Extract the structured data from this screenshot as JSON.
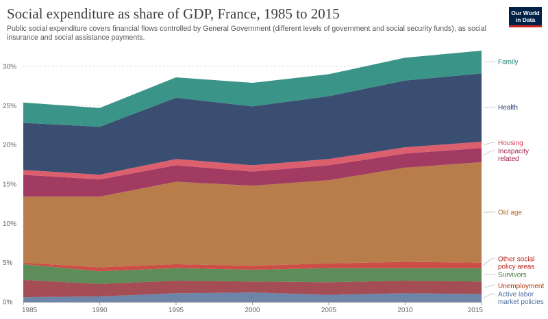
{
  "header": {
    "title": "Social expenditure as share of GDP, France, 1985 to 2015",
    "subtitle": "Public social expenditure covers financial flows controlled by General Government (different levels of government and social security funds), as social insurance and social assistance payments.",
    "logo_line1": "Our World",
    "logo_line2": "in Data"
  },
  "chart_data": {
    "type": "area",
    "stacked": true,
    "x": [
      1985,
      1990,
      1995,
      2000,
      2005,
      2010,
      2015
    ],
    "x_tick_labels": [
      "1985",
      "1990",
      "1995",
      "2000",
      "2005",
      "2010",
      "2015"
    ],
    "ylim": [
      0,
      32
    ],
    "y_ticks": [
      0,
      5,
      10,
      15,
      20,
      25,
      30
    ],
    "y_tick_labels": [
      "0%",
      "5%",
      "10%",
      "15%",
      "20%",
      "25%",
      "30%"
    ],
    "grid": "horizontal dashed",
    "legend": "right",
    "series": [
      {
        "name": "Active labor market policies",
        "label_lines": [
          "Active labor",
          "market policies"
        ],
        "color": "#6d85a8",
        "label_color": "#4c6a9c",
        "values": [
          0.6,
          0.7,
          1.1,
          1.2,
          0.9,
          1.1,
          1.0
        ]
      },
      {
        "name": "Unemployment",
        "label_lines": [
          "Unemployment"
        ],
        "color": "#a44d55",
        "label_color": "#b13507",
        "values": [
          2.2,
          1.6,
          1.6,
          1.4,
          1.6,
          1.6,
          1.6
        ]
      },
      {
        "name": "Survivors",
        "label_lines": [
          "Survivors"
        ],
        "color": "#5d8d58",
        "label_color": "#3c7a35",
        "values": [
          2.0,
          1.6,
          1.6,
          1.5,
          1.8,
          1.6,
          1.7
        ]
      },
      {
        "name": "Other social policy areas",
        "label_lines": [
          "Other social",
          "policy areas"
        ],
        "color": "#cc4e47",
        "label_color": "#b3201c",
        "values": [
          0.2,
          0.5,
          0.5,
          0.5,
          0.6,
          0.8,
          0.7
        ]
      },
      {
        "name": "Old age",
        "label_lines": [
          "Old age"
        ],
        "color": "#b97d4b",
        "label_color": "#b06a2c",
        "values": [
          8.4,
          9.0,
          10.5,
          10.2,
          10.6,
          12.0,
          12.8
        ]
      },
      {
        "name": "Incapacity related",
        "label_lines": [
          "Incapacity",
          "related"
        ],
        "color": "#a23b62",
        "label_color": "#a2224f",
        "values": [
          2.8,
          2.2,
          2.1,
          1.8,
          1.9,
          1.8,
          1.8
        ]
      },
      {
        "name": "Housing",
        "label_lines": [
          "Housing"
        ],
        "color": "#dc5f6e",
        "label_color": "#d73c50",
        "values": [
          0.6,
          0.6,
          0.8,
          0.8,
          0.8,
          0.8,
          0.8
        ]
      },
      {
        "name": "Health",
        "label_lines": [
          "Health"
        ],
        "color": "#3a4e71",
        "label_color": "#1f3660",
        "values": [
          6.0,
          6.1,
          7.8,
          7.5,
          8.0,
          8.5,
          8.7
        ]
      },
      {
        "name": "Family",
        "label_lines": [
          "Family"
        ],
        "color": "#3b9488",
        "label_color": "#188074",
        "values": [
          2.6,
          2.4,
          2.6,
          3.0,
          2.8,
          2.9,
          2.9
        ]
      }
    ]
  }
}
